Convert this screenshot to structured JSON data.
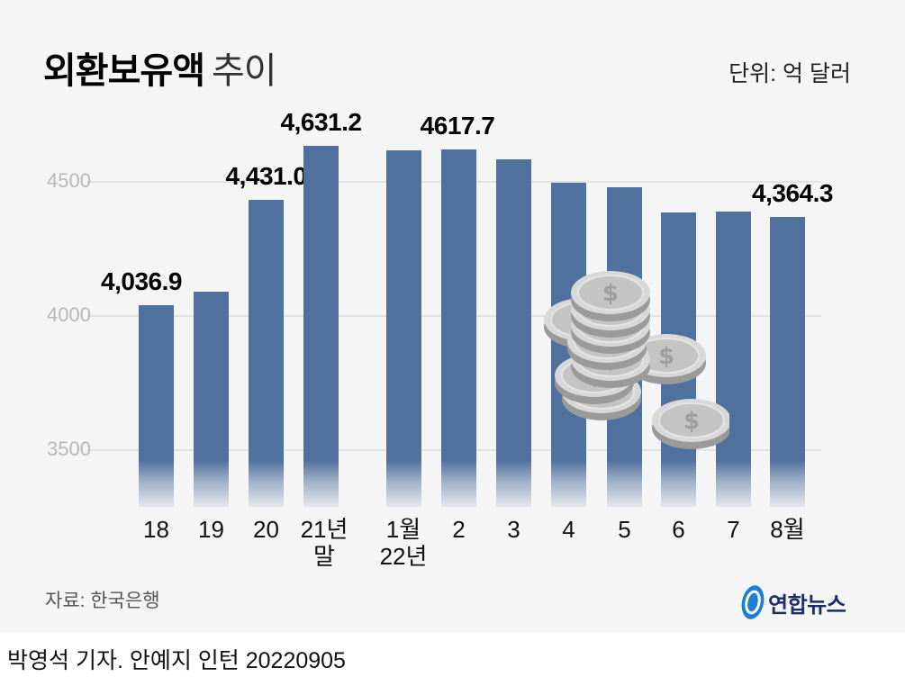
{
  "title": {
    "bold": "외환보유액",
    "light": "추이"
  },
  "unit": "단위: 억 달러",
  "source": "자료: 한국은행",
  "logo": {
    "text": "연합뉴스",
    "icon": "yonhap-globe-icon"
  },
  "byline": "박영석 기자. 안예지 인턴 20220905",
  "y_ticks": [
    {
      "label": "4500",
      "value": 4500
    },
    {
      "label": "4000",
      "value": 4000
    },
    {
      "label": "3500",
      "value": 3500
    }
  ],
  "bars": [
    {
      "x_label_1": "18",
      "x_label_2": "",
      "value": 4036.9,
      "label": "4,036.9"
    },
    {
      "x_label_1": "19",
      "x_label_2": "",
      "value": 4088,
      "label": ""
    },
    {
      "x_label_1": "20",
      "x_label_2": "",
      "value": 4431.0,
      "label": "4,431.0"
    },
    {
      "x_label_1": "21년",
      "x_label_2": "말",
      "value": 4631.2,
      "label": "4,631.2"
    },
    {
      "x_label_1": "1월",
      "x_label_2": "22년",
      "value": 4615,
      "label": ""
    },
    {
      "x_label_1": "2",
      "x_label_2": "",
      "value": 4617.7,
      "label": "4617.7"
    },
    {
      "x_label_1": "3",
      "x_label_2": "",
      "value": 4579,
      "label": ""
    },
    {
      "x_label_1": "4",
      "x_label_2": "",
      "value": 4494,
      "label": ""
    },
    {
      "x_label_1": "5",
      "x_label_2": "",
      "value": 4477,
      "label": ""
    },
    {
      "x_label_1": "6",
      "x_label_2": "",
      "value": 4383,
      "label": ""
    },
    {
      "x_label_1": "7",
      "x_label_2": "",
      "value": 4386,
      "label": ""
    },
    {
      "x_label_1": "8월",
      "x_label_2": "",
      "value": 4364.3,
      "label": "4,364.3"
    }
  ],
  "decoration": {
    "icon": "silver-dollar-coins-icon"
  },
  "colors": {
    "bar": "#50709e",
    "background": "#f5f5f5",
    "grid": "#e2e2e2",
    "logo": "#1c2c6c"
  },
  "chart_data": {
    "type": "bar",
    "title": "외환보유액 추이",
    "unit": "억 달러",
    "categories": [
      "18",
      "19",
      "20",
      "21년 말",
      "22년 1월",
      "2",
      "3",
      "4",
      "5",
      "6",
      "7",
      "8월"
    ],
    "values": [
      4036.9,
      4088,
      4431.0,
      4631.2,
      4615,
      4617.7,
      4579,
      4494,
      4477,
      4383,
      4386,
      4364.3
    ],
    "labeled_values": {
      "18": "4,036.9",
      "20": "4,431.0",
      "21년 말": "4,631.2",
      "2": "4617.7",
      "8월": "4,364.3"
    },
    "xlabel": "",
    "ylabel": "",
    "y_ticks": [
      3500,
      4000,
      4500
    ],
    "ylim": [
      3300,
      4750
    ],
    "grid": true,
    "legend": null,
    "source": "자료: 한국은행"
  }
}
